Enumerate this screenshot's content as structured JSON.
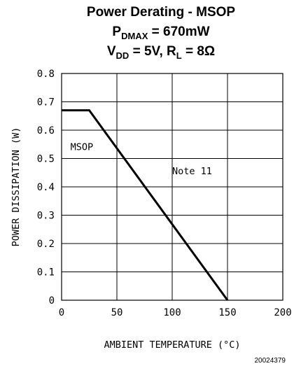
{
  "chart_data": {
    "type": "line",
    "title": {
      "line1": "Power Derating - MSOP",
      "line2": {
        "p": "P",
        "p_sub": "DMAX",
        "rest": " = 670mW"
      },
      "line3": {
        "v": "V",
        "v_sub": "DD",
        "mid": " = 5V, R",
        "r_sub": "L",
        "rest": " = 8Ω"
      }
    },
    "xlabel": "AMBIENT TEMPERATURE (°C)",
    "ylabel": "POWER DISSIPATION (W)",
    "xlim": [
      0,
      200
    ],
    "ylim": [
      0,
      0.8
    ],
    "x_ticks": [
      0,
      50,
      100,
      150,
      200
    ],
    "x_tick_labels": [
      "0",
      "50",
      "100",
      "150",
      "200"
    ],
    "y_ticks": [
      0,
      0.1,
      0.2,
      0.3,
      0.4,
      0.5,
      0.6,
      0.7,
      0.8
    ],
    "y_tick_labels": [
      "0",
      "0.1",
      "0.2",
      "0.3",
      "0.4",
      "0.5",
      "0.6",
      "0.7",
      "0.8"
    ],
    "grid": true,
    "series": [
      {
        "name": "MSOP",
        "x": [
          0,
          25,
          150
        ],
        "y": [
          0.67,
          0.67,
          0
        ]
      }
    ],
    "annotations": [
      {
        "text": "MSOP",
        "x": 8,
        "y": 0.53
      },
      {
        "text": "Note 11",
        "x": 100,
        "y": 0.445
      }
    ],
    "figure_id": "20024379"
  }
}
